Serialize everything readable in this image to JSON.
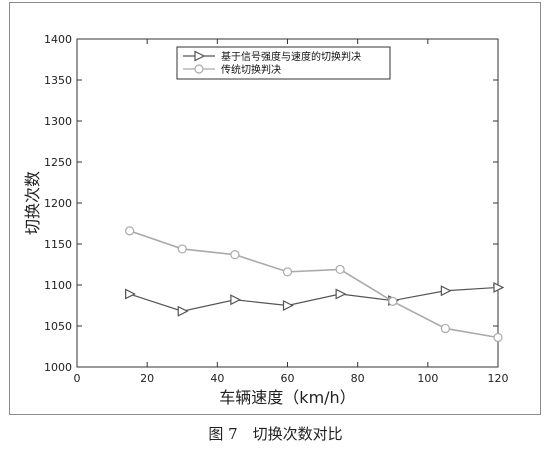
{
  "chart_data": {
    "type": "line",
    "xlabel": "车辆速度（km/h）",
    "ylabel": "切换次数",
    "xlim": [
      0,
      120
    ],
    "ylim": [
      1000,
      1400
    ],
    "xticks": [
      0,
      20,
      40,
      60,
      80,
      100,
      120
    ],
    "yticks": [
      1000,
      1050,
      1100,
      1150,
      1200,
      1250,
      1300,
      1350,
      1400
    ],
    "x": [
      15,
      30,
      45,
      60,
      75,
      90,
      105,
      120
    ],
    "legend_position": "top-center",
    "grid": false,
    "series": [
      {
        "name": "基于信号强度与速度的切换判决",
        "marker": "triangle-right",
        "color": "#555555",
        "values": [
          1089,
          1068,
          1082,
          1075,
          1089,
          1081,
          1093,
          1097
        ]
      },
      {
        "name": "传统切换判决",
        "marker": "circle",
        "color": "#aaaaaa",
        "values": [
          1166,
          1144,
          1137,
          1116,
          1119,
          1080,
          1047,
          1036
        ]
      }
    ]
  },
  "caption": "图 7　切换次数对比"
}
